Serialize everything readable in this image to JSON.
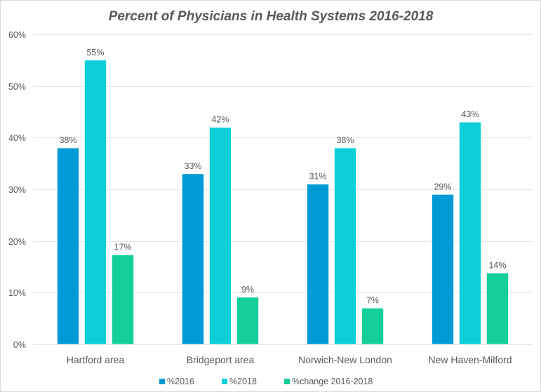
{
  "chart_data": {
    "type": "bar",
    "title": "Percent of Physicians in Health Systems 2016-2018",
    "xlabel": "",
    "ylabel": "",
    "categories": [
      "Hartford area",
      "Bridgeport area",
      "Norwich-New London",
      "New Haven-Milford"
    ],
    "series": [
      {
        "name": "%2016",
        "color": "#009ad6",
        "values": [
          38,
          33,
          31,
          29
        ],
        "labels": [
          "38%",
          "33%",
          "31%",
          "29%"
        ]
      },
      {
        "name": "%2018",
        "color": "#0ccfd8",
        "values": [
          55,
          42,
          38,
          43
        ],
        "labels": [
          "55%",
          "42%",
          "38%",
          "43%"
        ]
      },
      {
        "name": "%change 2016-2018",
        "color": "#13cf9a",
        "values": [
          17.3,
          9.1,
          7.0,
          13.8
        ],
        "labels": [
          "17%",
          "9%",
          "7%",
          "14%"
        ]
      }
    ],
    "ylim": [
      0,
      60
    ],
    "yticks": [
      0,
      10,
      20,
      30,
      40,
      50,
      60
    ],
    "ytick_labels": [
      "0%",
      "10%",
      "20%",
      "30%",
      "40%",
      "50%",
      "60%"
    ],
    "grid": true,
    "legend_position": "bottom"
  }
}
